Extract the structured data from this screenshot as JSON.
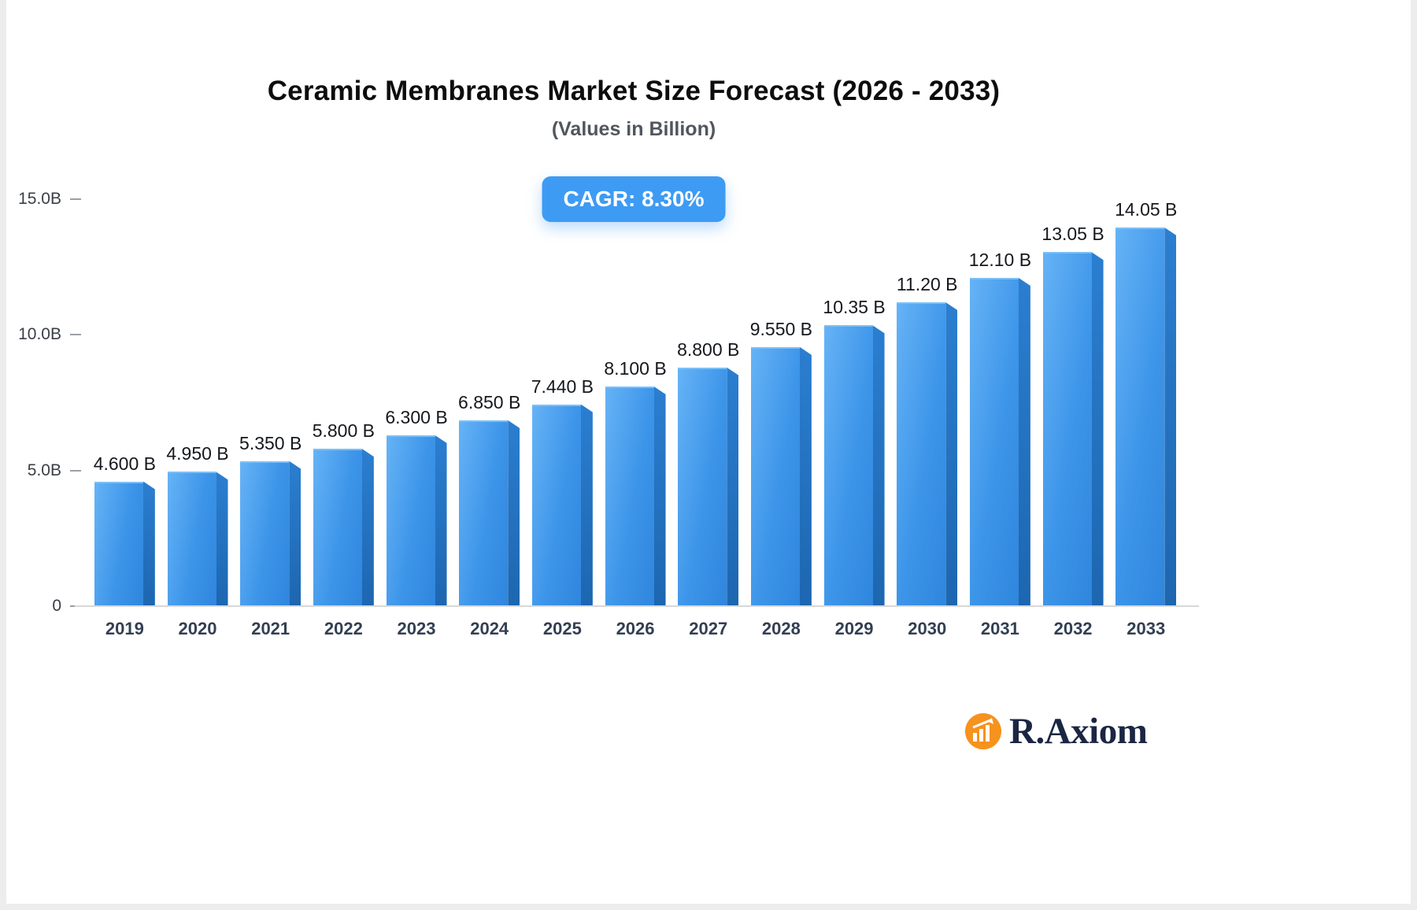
{
  "title": "Ceramic Membranes Market Size Forecast (2026 - 2033)",
  "subtitle": "(Values in Billion)",
  "cagr_badge": "CAGR: 8.30%",
  "brand": {
    "name": "R.Axiom",
    "icon": "bar-chart-icon",
    "icon_color": "#F6921E",
    "text_color": "#1b2644"
  },
  "chart_data": {
    "type": "bar",
    "title": "Ceramic Membranes Market Size Forecast (2026 - 2033)",
    "subtitle": "(Values in Billion)",
    "categories": [
      "2019",
      "2020",
      "2021",
      "2022",
      "2023",
      "2024",
      "2025",
      "2026",
      "2027",
      "2028",
      "2029",
      "2030",
      "2031",
      "2032",
      "2033"
    ],
    "values": [
      4.6,
      4.95,
      5.35,
      5.8,
      6.3,
      6.85,
      7.44,
      8.1,
      8.8,
      9.55,
      10.35,
      11.2,
      12.1,
      13.05,
      14.05
    ],
    "value_labels": [
      "4.600 B",
      "4.950 B",
      "5.350 B",
      "5.800 B",
      "6.300 B",
      "6.850 B",
      "7.440 B",
      "8.100 B",
      "8.800 B",
      "9.550 B",
      "10.35 B",
      "11.20 B",
      "12.10 B",
      "13.05 B",
      "14.05 B"
    ],
    "xlabel": "",
    "ylabel": "",
    "ylim": [
      0,
      15
    ],
    "yticks": [
      {
        "value": 0,
        "label": "0"
      },
      {
        "value": 5,
        "label": "5.0B"
      },
      {
        "value": 10,
        "label": "10.0B"
      },
      {
        "value": 15,
        "label": "15.0B"
      }
    ],
    "grid": false,
    "legend": false,
    "cagr": "8.30%",
    "bar_colors": {
      "front_light": "#66b3f6",
      "front_dark": "#2f86dd",
      "side_top": "#2b7ed0",
      "side_bottom": "#1d66b0"
    }
  }
}
